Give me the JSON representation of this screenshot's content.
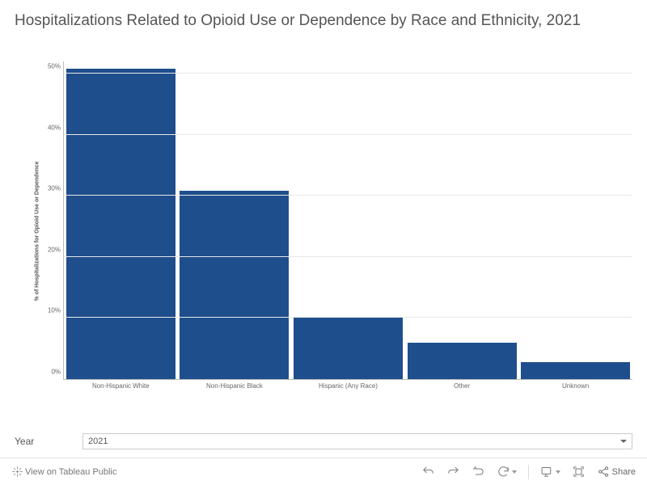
{
  "title": "Hospitalizations Related to Opioid Use or Dependence by Race and Ethnicity, 2021",
  "chart": {
    "type": "bar",
    "ylabel": "% of Hospitalizations for Opioid Use or Dependence",
    "ylim": [
      0,
      52
    ],
    "ytick_step": 10,
    "ytick_suffix": "%",
    "grid_color": "#e8e8e8",
    "axis_color": "#bbbbbb",
    "background_color": "#ffffff",
    "bar_color": "#1e4e8c",
    "bar_width_ratio": 0.96,
    "label_fontsize": 7,
    "tick_fontsize": 8,
    "categories": [
      "Non-Hispanic White",
      "Non-Hispanic Black",
      "Hispanic (Any Race)",
      "Other",
      "Unknown"
    ],
    "values": [
      50.8,
      30.8,
      10.0,
      6.0,
      2.8
    ]
  },
  "filter": {
    "label": "Year",
    "selected": "2021"
  },
  "toolbar": {
    "view_label": "View on Tableau Public",
    "share_label": "Share"
  }
}
